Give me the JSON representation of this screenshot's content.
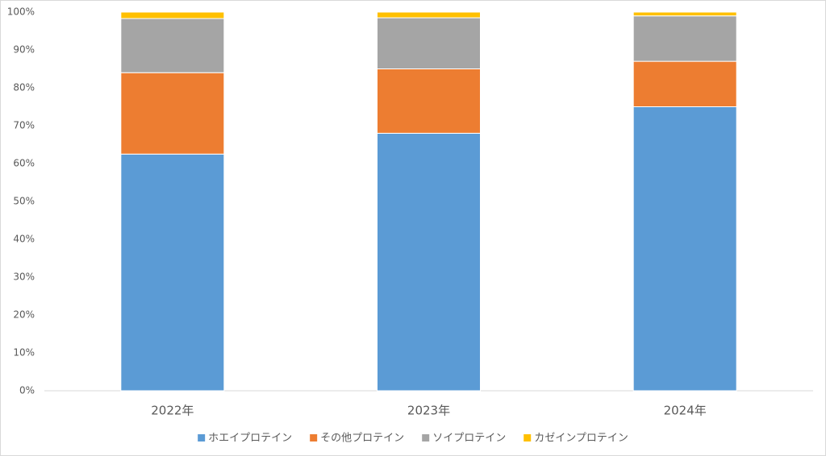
{
  "chart_data": {
    "type": "stacked-bar",
    "categories": [
      "2022年",
      "2023年",
      "2024年"
    ],
    "series": [
      {
        "name": "ホエイプロテイン",
        "color": "#5b9bd5",
        "values": [
          62.5,
          68,
          75
        ]
      },
      {
        "name": "その他プロテイン",
        "color": "#ed7d31",
        "values": [
          21.5,
          17,
          12
        ]
      },
      {
        "name": "ソイプロテイン",
        "color": "#a5a5a5",
        "values": [
          14.3,
          13.5,
          12
        ]
      },
      {
        "name": "カゼインプロテイン",
        "color": "#ffc000",
        "values": [
          1.7,
          1.5,
          1
        ]
      }
    ],
    "ylim": [
      0,
      100
    ],
    "yticks": [
      {
        "value": 0,
        "label": "0%"
      },
      {
        "value": 10,
        "label": "10%"
      },
      {
        "value": 20,
        "label": "20%"
      },
      {
        "value": 30,
        "label": "30%"
      },
      {
        "value": 40,
        "label": "40%"
      },
      {
        "value": 50,
        "label": "50%"
      },
      {
        "value": 60,
        "label": "60%"
      },
      {
        "value": 70,
        "label": "70%"
      },
      {
        "value": 80,
        "label": "80%"
      },
      {
        "value": 90,
        "label": "90%"
      },
      {
        "value": 100,
        "label": "100%"
      }
    ],
    "grid": false,
    "legend": "bottom"
  }
}
